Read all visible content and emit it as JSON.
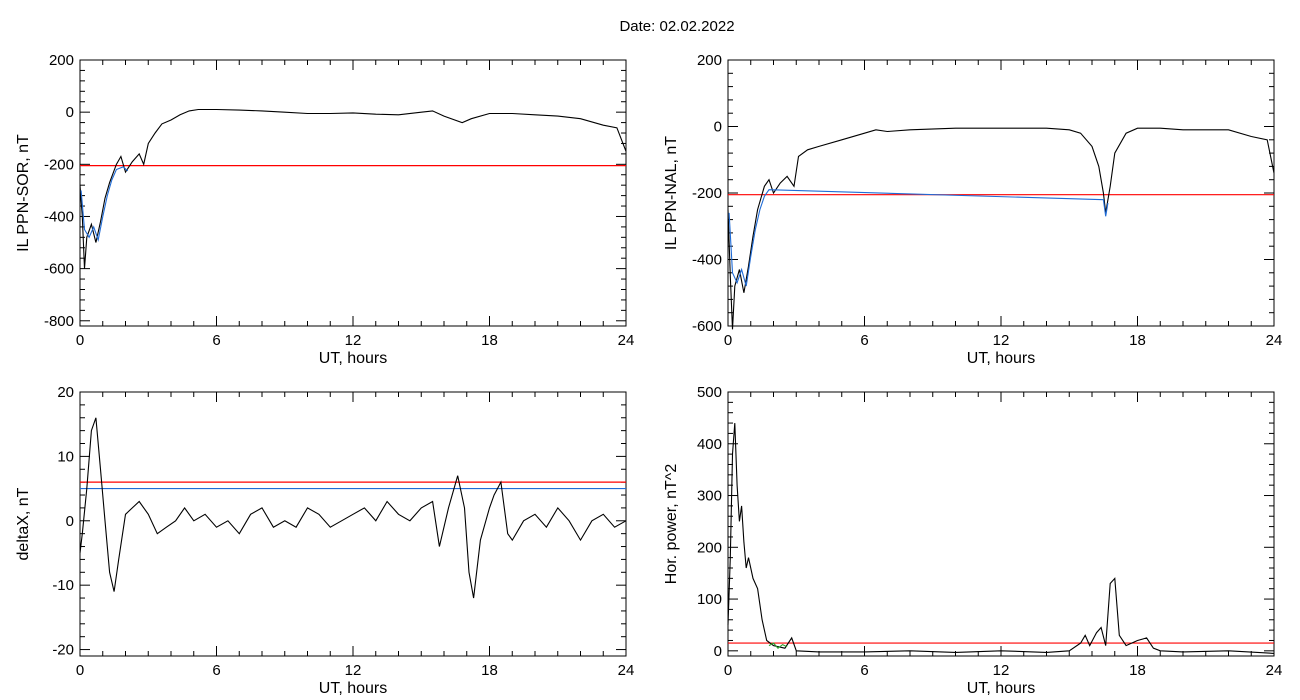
{
  "title": "Date:  02.02.2022",
  "colors": {
    "axis": "#000000",
    "trace": "#000000",
    "threshold": "#ff0000",
    "blue": "#1f6bd6",
    "green": "#2ca02c"
  },
  "chart_data": [
    {
      "id": "sor",
      "type": "line",
      "ylabel": "IL PPN-SOR, nT",
      "xlabel": "UT, hours",
      "xlim": [
        0,
        24
      ],
      "ylim": [
        -820,
        200
      ],
      "xticks": [
        0,
        6,
        12,
        18,
        24
      ],
      "yticks": [
        200,
        0,
        -200,
        -400,
        -600,
        -800
      ],
      "thresholds": [
        {
          "y": -205,
          "color": "#ff0000"
        }
      ],
      "series": [
        {
          "color": "#000000",
          "points": [
            [
              0,
              -280
            ],
            [
              0.1,
              -400
            ],
            [
              0.2,
              -600
            ],
            [
              0.3,
              -480
            ],
            [
              0.5,
              -430
            ],
            [
              0.7,
              -500
            ],
            [
              0.9,
              -420
            ],
            [
              1.1,
              -330
            ],
            [
              1.3,
              -270
            ],
            [
              1.6,
              -200
            ],
            [
              1.8,
              -170
            ],
            [
              2.0,
              -230
            ],
            [
              2.3,
              -190
            ],
            [
              2.6,
              -160
            ],
            [
              2.8,
              -200
            ],
            [
              3.0,
              -120
            ],
            [
              3.3,
              -80
            ],
            [
              3.6,
              -45
            ],
            [
              4.0,
              -30
            ],
            [
              4.4,
              -10
            ],
            [
              4.8,
              5
            ],
            [
              5.2,
              10
            ],
            [
              6,
              10
            ],
            [
              7,
              8
            ],
            [
              8,
              5
            ],
            [
              9,
              0
            ],
            [
              10,
              -5
            ],
            [
              11,
              -5
            ],
            [
              12,
              -3
            ],
            [
              13,
              -8
            ],
            [
              14,
              -10
            ],
            [
              15,
              0
            ],
            [
              15.5,
              5
            ],
            [
              16,
              -15
            ],
            [
              16.8,
              -40
            ],
            [
              17.2,
              -25
            ],
            [
              18,
              -5
            ],
            [
              19,
              -5
            ],
            [
              20,
              -10
            ],
            [
              21,
              -15
            ],
            [
              22,
              -25
            ],
            [
              23,
              -50
            ],
            [
              23.6,
              -60
            ],
            [
              24,
              -150
            ]
          ]
        },
        {
          "color": "#1f6bd6",
          "points": [
            [
              0.05,
              -300
            ],
            [
              0.2,
              -450
            ],
            [
              0.4,
              -480
            ],
            [
              0.6,
              -440
            ],
            [
              0.8,
              -490
            ],
            [
              1.0,
              -400
            ],
            [
              1.2,
              -320
            ],
            [
              1.4,
              -260
            ],
            [
              1.6,
              -220
            ],
            [
              1.9,
              -210
            ],
            [
              2.1,
              -225
            ]
          ]
        }
      ]
    },
    {
      "id": "nal",
      "type": "line",
      "ylabel": "IL PPN-NAL, nT",
      "xlabel": "UT, hours",
      "xlim": [
        0,
        24
      ],
      "ylim": [
        -600,
        200
      ],
      "xticks": [
        0,
        6,
        12,
        18,
        24
      ],
      "yticks": [
        200,
        0,
        -200,
        -400,
        -600
      ],
      "thresholds": [
        {
          "y": -205,
          "color": "#ff0000"
        }
      ],
      "series": [
        {
          "color": "#000000",
          "points": [
            [
              0,
              -250
            ],
            [
              0.1,
              -450
            ],
            [
              0.2,
              -610
            ],
            [
              0.3,
              -480
            ],
            [
              0.5,
              -430
            ],
            [
              0.7,
              -500
            ],
            [
              0.9,
              -420
            ],
            [
              1.1,
              -330
            ],
            [
              1.3,
              -250
            ],
            [
              1.6,
              -180
            ],
            [
              1.8,
              -160
            ],
            [
              2.0,
              -200
            ],
            [
              2.3,
              -170
            ],
            [
              2.6,
              -150
            ],
            [
              2.9,
              -180
            ],
            [
              3.1,
              -90
            ],
            [
              3.5,
              -70
            ],
            [
              4,
              -60
            ],
            [
              5,
              -40
            ],
            [
              6,
              -20
            ],
            [
              6.5,
              -10
            ],
            [
              7,
              -15
            ],
            [
              8,
              -10
            ],
            [
              10,
              -5
            ],
            [
              12,
              -5
            ],
            [
              14,
              -5
            ],
            [
              15,
              -10
            ],
            [
              15.5,
              -20
            ],
            [
              16,
              -60
            ],
            [
              16.3,
              -120
            ],
            [
              16.5,
              -200
            ],
            [
              16.6,
              -260
            ],
            [
              16.8,
              -180
            ],
            [
              17,
              -80
            ],
            [
              17.5,
              -20
            ],
            [
              18,
              -5
            ],
            [
              19,
              -5
            ],
            [
              20,
              -10
            ],
            [
              22,
              -10
            ],
            [
              23,
              -30
            ],
            [
              23.7,
              -40
            ],
            [
              24,
              -140
            ]
          ]
        },
        {
          "color": "#1f6bd6",
          "points": [
            [
              0.05,
              -260
            ],
            [
              0.2,
              -440
            ],
            [
              0.4,
              -470
            ],
            [
              0.6,
              -430
            ],
            [
              0.8,
              -480
            ],
            [
              1.0,
              -390
            ],
            [
              1.2,
              -310
            ],
            [
              1.4,
              -250
            ],
            [
              1.6,
              -210
            ],
            [
              1.8,
              -190
            ],
            [
              16.5,
              -220
            ],
            [
              16.6,
              -270
            ],
            [
              16.7,
              -230
            ]
          ]
        }
      ]
    },
    {
      "id": "deltax",
      "type": "line",
      "ylabel": "deltaX, nT",
      "xlabel": "UT, hours",
      "xlim": [
        0,
        24
      ],
      "ylim": [
        -21,
        20
      ],
      "xticks": [
        0,
        6,
        12,
        18,
        24
      ],
      "yticks": [
        20,
        10,
        0,
        -10,
        -20
      ],
      "thresholds": [
        {
          "y": 6,
          "color": "#ff0000"
        },
        {
          "y": 5,
          "color": "#1f6bd6"
        }
      ],
      "series": [
        {
          "color": "#000000",
          "points": [
            [
              0,
              -5
            ],
            [
              0.1,
              -2
            ],
            [
              0.3,
              5
            ],
            [
              0.5,
              14
            ],
            [
              0.7,
              16
            ],
            [
              0.9,
              8
            ],
            [
              1.1,
              0
            ],
            [
              1.3,
              -8
            ],
            [
              1.5,
              -11
            ],
            [
              1.7,
              -6
            ],
            [
              2.0,
              1
            ],
            [
              2.3,
              2
            ],
            [
              2.6,
              3
            ],
            [
              3.0,
              1
            ],
            [
              3.4,
              -2
            ],
            [
              3.8,
              -1
            ],
            [
              4.2,
              0
            ],
            [
              4.6,
              2
            ],
            [
              5.0,
              0
            ],
            [
              5.5,
              1
            ],
            [
              6,
              -1
            ],
            [
              6.5,
              0
            ],
            [
              7,
              -2
            ],
            [
              7.5,
              1
            ],
            [
              8,
              2
            ],
            [
              8.5,
              -1
            ],
            [
              9,
              0
            ],
            [
              9.5,
              -1
            ],
            [
              10,
              2
            ],
            [
              10.5,
              1
            ],
            [
              11,
              -1
            ],
            [
              11.5,
              0
            ],
            [
              12,
              1
            ],
            [
              12.5,
              2
            ],
            [
              13,
              0
            ],
            [
              13.5,
              3
            ],
            [
              14,
              1
            ],
            [
              14.5,
              0
            ],
            [
              15,
              2
            ],
            [
              15.5,
              3
            ],
            [
              15.8,
              -4
            ],
            [
              16.2,
              2
            ],
            [
              16.6,
              7
            ],
            [
              16.9,
              2
            ],
            [
              17.1,
              -8
            ],
            [
              17.3,
              -12
            ],
            [
              17.6,
              -3
            ],
            [
              18,
              2
            ],
            [
              18.2,
              4
            ],
            [
              18.5,
              6
            ],
            [
              18.8,
              -2
            ],
            [
              19,
              -3
            ],
            [
              19.5,
              0
            ],
            [
              20,
              1
            ],
            [
              20.5,
              -1
            ],
            [
              21,
              2
            ],
            [
              21.5,
              0
            ],
            [
              22,
              -3
            ],
            [
              22.5,
              0
            ],
            [
              23,
              1
            ],
            [
              23.5,
              -1
            ],
            [
              24,
              0
            ]
          ]
        }
      ]
    },
    {
      "id": "power",
      "type": "line",
      "ylabel": "Hor. power, nT^2",
      "xlabel": "UT, hours",
      "xlim": [
        0,
        24
      ],
      "ylim": [
        -10,
        500
      ],
      "xticks": [
        0,
        6,
        12,
        18,
        24
      ],
      "yticks": [
        500,
        400,
        300,
        200,
        100,
        0
      ],
      "thresholds": [
        {
          "y": 15,
          "color": "#ff0000"
        }
      ],
      "series": [
        {
          "color": "#000000",
          "points": [
            [
              0,
              50
            ],
            [
              0.1,
              180
            ],
            [
              0.2,
              380
            ],
            [
              0.3,
              440
            ],
            [
              0.4,
              320
            ],
            [
              0.5,
              250
            ],
            [
              0.6,
              280
            ],
            [
              0.7,
              210
            ],
            [
              0.8,
              160
            ],
            [
              0.9,
              180
            ],
            [
              1.1,
              140
            ],
            [
              1.3,
              120
            ],
            [
              1.5,
              60
            ],
            [
              1.7,
              20
            ],
            [
              2.0,
              10
            ],
            [
              2.5,
              5
            ],
            [
              2.8,
              25
            ],
            [
              3.0,
              0
            ],
            [
              4,
              -2
            ],
            [
              6,
              -2
            ],
            [
              8,
              0
            ],
            [
              10,
              -3
            ],
            [
              12,
              0
            ],
            [
              14,
              -3
            ],
            [
              15,
              0
            ],
            [
              15.5,
              15
            ],
            [
              15.7,
              30
            ],
            [
              15.9,
              10
            ],
            [
              16.2,
              35
            ],
            [
              16.4,
              45
            ],
            [
              16.6,
              10
            ],
            [
              16.8,
              130
            ],
            [
              17.0,
              140
            ],
            [
              17.2,
              30
            ],
            [
              17.5,
              10
            ],
            [
              18,
              20
            ],
            [
              18.4,
              25
            ],
            [
              18.7,
              5
            ],
            [
              19,
              0
            ],
            [
              20,
              -2
            ],
            [
              22,
              0
            ],
            [
              24,
              -5
            ]
          ]
        },
        {
          "color": "#2ca02c",
          "points": [
            [
              1.8,
              10
            ],
            [
              2.0,
              15
            ],
            [
              2.2,
              5
            ],
            [
              2.4,
              12
            ],
            [
              2.6,
              8
            ]
          ]
        }
      ]
    }
  ]
}
